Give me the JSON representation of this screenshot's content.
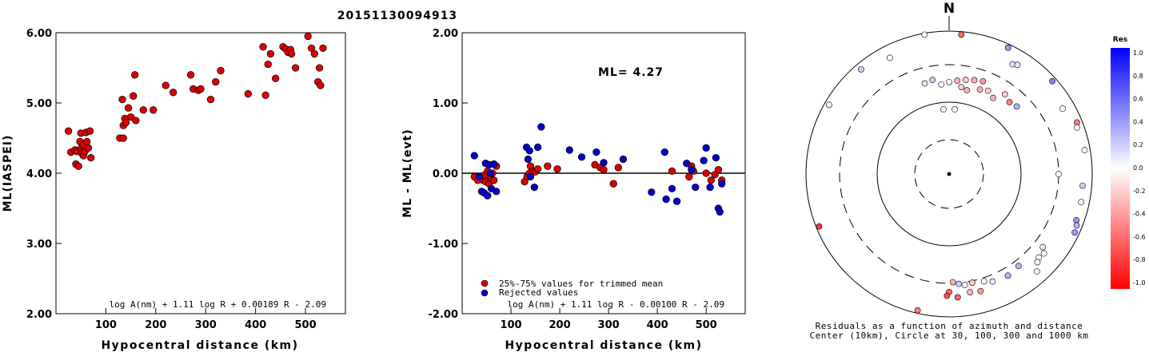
{
  "title": "20151130094913",
  "panel_left": {
    "ylabel": "ML(IASPEI)",
    "xlabel": "Hypocentral distance (km)",
    "formula": "log A(nm) + 1.11 log R + 0.00189 R - 2.09",
    "yticks": [
      "2.00",
      "3.00",
      "4.00",
      "5.00",
      "6.00"
    ],
    "xticks": [
      "100",
      "200",
      "300",
      "400",
      "500"
    ]
  },
  "panel_mid": {
    "ylabel": "ML - ML(evt)",
    "xlabel": "Hypocentral distance (km)",
    "ml_text": "ML= 4.27",
    "formula": "log A(nm) + 1.11 log R - 0.00100 R - 2.09",
    "yticks": [
      "-2.00",
      "-1.00",
      "0.00",
      "1.00",
      "2.00"
    ],
    "xticks": [
      "100",
      "200",
      "300",
      "400",
      "500"
    ],
    "legend": [
      "25%-75% values for trimmed mean",
      "Rejected values"
    ]
  },
  "panel_polar": {
    "north": "N",
    "caption1": "Residuals as a function of azimuth and distance",
    "caption2": "Center (10km), Circle at 30, 100, 300 and 1000 km",
    "colorbar_title": "Res",
    "colorbar_ticks": [
      "1.0",
      "0.8",
      "0.6",
      "0.4",
      "0.2",
      "0.0",
      "-0.2",
      "-0.4",
      "-0.6",
      "-0.8",
      "-1.0"
    ]
  },
  "colors": {
    "used": "#dd0000",
    "rejected": "#0000cc",
    "axis": "#000000"
  },
  "chart_data": [
    {
      "type": "scatter",
      "title": "20151130094913",
      "xlabel": "Hypocentral distance (km)",
      "ylabel": "ML(IASPEI)",
      "xlim": [
        0,
        580
      ],
      "ylim": [
        2.0,
        6.0
      ],
      "series": [
        {
          "x": [
            25,
            30,
            38,
            40,
            42,
            45,
            48,
            50,
            50,
            52,
            55,
            55,
            58,
            60,
            62,
            65,
            68,
            70,
            128,
            133,
            135,
            135,
            138,
            140,
            145,
            150,
            155,
            158,
            160,
            175,
            195,
            220,
            235,
            270,
            275,
            285,
            290,
            310,
            320,
            330,
            385,
            415,
            420,
            425,
            430,
            440,
            455,
            460,
            465,
            470,
            472,
            480,
            505,
            512,
            518,
            525,
            528,
            530,
            535
          ],
          "y": [
            4.6,
            4.3,
            4.33,
            4.13,
            4.31,
            4.1,
            4.45,
            4.35,
            4.57,
            4.28,
            4.25,
            4.4,
            4.31,
            4.58,
            4.45,
            4.36,
            4.6,
            4.22,
            4.5,
            5.05,
            4.68,
            4.5,
            4.78,
            4.72,
            4.93,
            4.8,
            5.1,
            5.4,
            4.75,
            4.9,
            4.9,
            5.25,
            5.15,
            5.4,
            5.2,
            5.18,
            5.2,
            5.05,
            5.3,
            5.46,
            5.13,
            5.8,
            5.11,
            5.55,
            5.7,
            5.35,
            5.8,
            5.77,
            5.72,
            5.76,
            5.7,
            5.5,
            5.95,
            5.78,
            5.7,
            5.3,
            5.5,
            5.25,
            5.78
          ]
        }
      ]
    },
    {
      "type": "scatter",
      "xlabel": "Hypocentral distance (km)",
      "ylabel": "ML - ML(evt)",
      "xlim": [
        0,
        580
      ],
      "ylim": [
        -2.0,
        2.0
      ],
      "series": [
        {
          "name": "25%-75% values for trimmed mean",
          "x": [
            25,
            32,
            40,
            43,
            45,
            48,
            52,
            55,
            58,
            60,
            62,
            65,
            70,
            128,
            133,
            138,
            140,
            145,
            150,
            155,
            175,
            195,
            272,
            283,
            290,
            310,
            320,
            430,
            465,
            470,
            474,
            500,
            510,
            518,
            525,
            532
          ],
          "y": [
            -0.05,
            -0.1,
            -0.06,
            -0.1,
            -0.03,
            -0.12,
            0.03,
            -0.15,
            -0.05,
            -0.08,
            0.0,
            -0.1,
            0.1,
            -0.12,
            -0.05,
            0.0,
            0.1,
            0.03,
            0.02,
            0.06,
            0.1,
            0.06,
            0.12,
            0.08,
            0.05,
            -0.15,
            0.08,
            0.03,
            -0.05,
            0.1,
            0.03,
            0.0,
            -0.1,
            -0.02,
            0.05,
            -0.1
          ]
        },
        {
          "name": "Rejected values",
          "x": [
            25,
            35,
            40,
            45,
            48,
            52,
            55,
            58,
            60,
            65,
            70,
            132,
            135,
            138,
            140,
            148,
            155,
            162,
            220,
            245,
            275,
            290,
            330,
            388,
            415,
            418,
            430,
            440,
            460,
            470,
            478,
            495,
            500,
            508,
            520,
            525,
            528,
            532
          ],
          "y": [
            0.25,
            -0.05,
            -0.26,
            -0.28,
            0.14,
            -0.32,
            0.12,
            0.0,
            -0.22,
            0.13,
            -0.26,
            0.37,
            0.2,
            0.32,
            -0.05,
            -0.2,
            0.37,
            0.66,
            0.33,
            0.23,
            0.3,
            0.15,
            0.2,
            -0.27,
            0.3,
            -0.37,
            -0.22,
            -0.4,
            0.14,
            0.05,
            -0.2,
            0.18,
            0.36,
            -0.2,
            0.22,
            -0.5,
            -0.55,
            -0.15
          ]
        }
      ]
    },
    {
      "type": "scatter",
      "title": "Residuals as a function of azimuth and distance",
      "rings_km": [
        30,
        100,
        300,
        1000
      ],
      "center_km": 10,
      "points": [
        {
          "az": 350,
          "d": 950,
          "res": 0.0
        },
        {
          "az": 5,
          "d": 900,
          "res": -0.6
        },
        {
          "az": 25,
          "d": 880,
          "res": 0.4
        },
        {
          "az": 300,
          "d": 850,
          "res": 0.0
        },
        {
          "az": 320,
          "d": 800,
          "res": 0.2
        },
        {
          "az": 333,
          "d": 640,
          "res": 0.0
        },
        {
          "az": 30,
          "d": 560,
          "res": 0.1
        },
        {
          "az": 32,
          "d": 600,
          "res": 0.1
        },
        {
          "az": 48,
          "d": 860,
          "res": 0.5
        },
        {
          "az": 68,
          "d": 830,
          "res": -0.5
        },
        {
          "az": 70,
          "d": 780,
          "res": 0.0
        },
        {
          "az": 80,
          "d": 820,
          "res": 0.0
        },
        {
          "az": 60,
          "d": 650,
          "res": 0.0
        },
        {
          "az": 95,
          "d": 720,
          "res": 0.2
        },
        {
          "az": 102,
          "d": 750,
          "res": 0.0
        },
        {
          "az": 110,
          "d": 760,
          "res": 0.4
        },
        {
          "az": 112,
          "d": 820,
          "res": 0.3
        },
        {
          "az": 115,
          "d": 850,
          "res": 0.4
        },
        {
          "az": 90,
          "d": 300,
          "res": 0.0
        },
        {
          "az": 130,
          "d": 500,
          "res": 0.0
        },
        {
          "az": 133,
          "d": 480,
          "res": 0.0
        },
        {
          "az": 135,
          "d": 520,
          "res": 0.0
        },
        {
          "az": 128,
          "d": 420,
          "res": 0.1
        },
        {
          "az": 143,
          "d": 370,
          "res": 0.3
        },
        {
          "az": 150,
          "d": 400,
          "res": 0.3
        },
        {
          "az": 158,
          "d": 380,
          "res": 0.1
        },
        {
          "az": 162,
          "d": 340,
          "res": 0.0
        },
        {
          "az": 168,
          "d": 320,
          "res": -0.2
        },
        {
          "az": 172,
          "d": 330,
          "res": 0.0
        },
        {
          "az": 175,
          "d": 310,
          "res": 0.2
        },
        {
          "az": 178,
          "d": 290,
          "res": -0.3
        },
        {
          "az": 180,
          "d": 410,
          "res": -0.6
        },
        {
          "az": 181,
          "d": 470,
          "res": -0.7
        },
        {
          "az": 176,
          "d": 500,
          "res": -0.6
        },
        {
          "az": 170,
          "d": 440,
          "res": -0.3
        },
        {
          "az": 165,
          "d": 460,
          "res": -0.4
        },
        {
          "az": 138,
          "d": 650,
          "res": 0.0
        },
        {
          "az": 193,
          "d": 900,
          "res": -0.5
        },
        {
          "az": 248,
          "d": 900,
          "res": -0.8
        },
        {
          "az": 0,
          "d": 180,
          "res": 0.0
        },
        {
          "az": 355,
          "d": 170,
          "res": 0.0
        },
        {
          "az": 5,
          "d": 190,
          "res": -0.3
        },
        {
          "az": 10,
          "d": 200,
          "res": -0.2
        },
        {
          "az": 15,
          "d": 210,
          "res": -0.3
        },
        {
          "az": 20,
          "d": 220,
          "res": -0.4
        },
        {
          "az": 25,
          "d": 180,
          "res": -0.2
        },
        {
          "az": 30,
          "d": 160,
          "res": -0.3
        },
        {
          "az": 35,
          "d": 210,
          "res": -0.2
        },
        {
          "az": 40,
          "d": 190,
          "res": -0.5
        },
        {
          "az": 45,
          "d": 200,
          "res": 0.3
        },
        {
          "az": 350,
          "d": 200,
          "res": 0.2
        },
        {
          "az": 345,
          "d": 190,
          "res": 0.1
        },
        {
          "az": 8,
          "d": 160,
          "res": -0.2
        },
        {
          "az": 12,
          "d": 150,
          "res": -0.3
        },
        {
          "az": 355,
          "d": 80,
          "res": 0.0
        },
        {
          "az": 5,
          "d": 80,
          "res": 0.0
        },
        {
          "az": 20,
          "d": 170,
          "res": -0.3
        }
      ]
    }
  ]
}
